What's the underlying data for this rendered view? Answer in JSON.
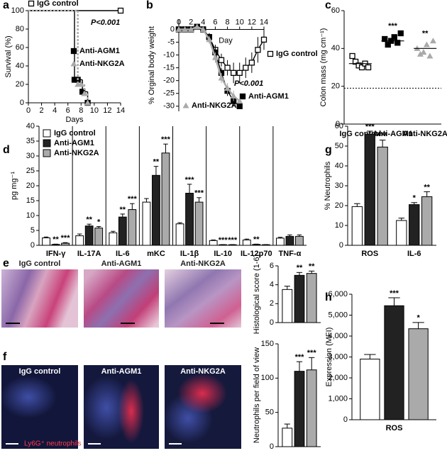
{
  "chart_data": [
    {
      "panel": "a",
      "type": "line",
      "step": true,
      "xlabel": "Days",
      "ylabel": "Survival (%)",
      "xlim": [
        0,
        14
      ],
      "xticks": [
        0,
        2,
        4,
        6,
        8,
        10,
        12,
        14
      ],
      "ylim": [
        0,
        100
      ],
      "yticks": [
        0,
        20,
        40,
        60,
        80,
        100
      ],
      "annotation": "P<0.001",
      "series": [
        {
          "name": "IgG control",
          "color": "#000000",
          "marker": "square-open",
          "x": [
            0,
            14
          ],
          "values": [
            100,
            100
          ]
        },
        {
          "name": "Anti-AGM1",
          "color": "#000000",
          "marker": "square",
          "x": [
            0,
            7,
            7.5,
            8.2,
            9
          ],
          "values": [
            100,
            25,
            25,
            12,
            0
          ]
        },
        {
          "name": "Anti-NKG2A",
          "color": "#aaaaaa",
          "marker": "triangle",
          "dash": true,
          "x": [
            0,
            7.5,
            8,
            8.5,
            9
          ],
          "values": [
            100,
            20,
            20,
            10,
            0
          ]
        }
      ]
    },
    {
      "panel": "b",
      "type": "line",
      "xlabel": "Day",
      "ylabel": "% Orginal body weight",
      "xaxis_crosses": 0,
      "xlim": [
        0,
        14
      ],
      "xticks": [
        0,
        2,
        4,
        6,
        8,
        10,
        12,
        14
      ],
      "ylim": [
        -32,
        4
      ],
      "yticks": [
        0,
        -5,
        -10,
        -15,
        -20,
        -25,
        -30
      ],
      "annotation": "P<0.001",
      "series": [
        {
          "name": "IgG control",
          "color": "#000000",
          "marker": "square-open",
          "x": [
            0,
            1,
            2,
            3,
            4,
            5,
            6,
            7,
            8,
            9,
            10,
            11,
            12,
            13,
            14
          ],
          "values": [
            0,
            0,
            0,
            1,
            0,
            -3,
            -8,
            -12,
            -15,
            -17,
            -17,
            -15,
            -13,
            -8,
            -4
          ],
          "errors": [
            1,
            1,
            1,
            1,
            1,
            1.5,
            2,
            2.5,
            3,
            4,
            4,
            4,
            4,
            5,
            4
          ]
        },
        {
          "name": "Anti-AGM1",
          "color": "#000000",
          "marker": "square",
          "x": [
            0,
            1,
            2,
            3,
            4,
            5,
            6,
            7,
            8,
            9,
            10
          ],
          "values": [
            0,
            0,
            0,
            1,
            0,
            -3,
            -9,
            -17,
            -24,
            -28,
            -30
          ],
          "errors": [
            1,
            1,
            1,
            1,
            1,
            1.5,
            2,
            2,
            2,
            2,
            1
          ]
        },
        {
          "name": "Anti-NKG2A",
          "color": "#aaaaaa",
          "marker": "triangle",
          "x": [
            0,
            1,
            2,
            3,
            4,
            5,
            6,
            7,
            8,
            9,
            10
          ],
          "values": [
            0,
            0,
            0,
            1,
            0,
            -4,
            -11,
            -19,
            -23,
            -26,
            -28
          ],
          "errors": [
            1,
            1,
            1,
            1,
            1,
            1.5,
            2,
            2,
            2,
            2,
            1
          ]
        }
      ]
    },
    {
      "panel": "c",
      "type": "strip",
      "ylabel": "Colon mass (mg cm⁻¹)",
      "categories": [
        "IgG control",
        "Anti-AGM1",
        "Anti-NKG2A"
      ],
      "values": [
        [
          36,
          33,
          31,
          30,
          32,
          30
        ],
        [
          45,
          42,
          44,
          46,
          43,
          48
        ],
        [
          40,
          37,
          38,
          42,
          36,
          44
        ]
      ],
      "means": [
        32,
        44,
        40
      ],
      "markers": [
        "square-open",
        "square",
        "triangle"
      ],
      "colors": [
        "#000000",
        "#000000",
        "#aaaaaa"
      ],
      "significance": [
        null,
        "***",
        "**"
      ],
      "reference_line": 19,
      "ylim": [
        0,
        60
      ],
      "yticks": [
        0,
        20,
        40,
        60
      ]
    },
    {
      "panel": "d",
      "type": "bar",
      "ylabel": "pg mg⁻¹",
      "separators": true,
      "categories": [
        "IFN-γ",
        "IL-17A",
        "IL-6",
        "mKC",
        "IL-1β",
        "IL-10",
        "IL-12p70",
        "TNF-α"
      ],
      "ylim": [
        0,
        40
      ],
      "yticks": [
        0,
        5,
        10,
        15,
        20,
        25,
        30,
        35,
        40
      ],
      "series": [
        {
          "name": "IgG control",
          "color": "#ffffff",
          "values": [
            2.5,
            3.2,
            4.2,
            14.5,
            7.2,
            1.6,
            1.8,
            2.4
          ],
          "errors": [
            0.3,
            0.6,
            0.5,
            1.2,
            0.4,
            0.2,
            0.3,
            0.3
          ]
        },
        {
          "name": "Anti-AGM1",
          "color": "#222222",
          "values": [
            0.3,
            6.5,
            9.5,
            23.5,
            17.5,
            0.2,
            0.3,
            3
          ],
          "errors": [
            0.1,
            0.6,
            1,
            3,
            3,
            0.05,
            0.1,
            0.5
          ],
          "significance": [
            "**",
            "**",
            "**",
            "**",
            "***",
            "***",
            "**",
            null
          ]
        },
        {
          "name": "Anti-NKG2A",
          "color": "#aaaaaa",
          "values": [
            0.7,
            5.8,
            12,
            31,
            14.5,
            0.2,
            0.2,
            3
          ],
          "errors": [
            0.2,
            0.5,
            2,
            3,
            1.5,
            0.05,
            0.05,
            0.5
          ],
          "significance": [
            "***",
            "*",
            "***",
            "***",
            "***",
            "***",
            null,
            null
          ]
        }
      ]
    },
    {
      "panel": "g",
      "type": "bar",
      "ylabel": "% Neutrophils",
      "categories": [
        "ROS",
        "IL-6"
      ],
      "ylim": [
        0,
        60
      ],
      "yticks": [
        0,
        10,
        20,
        30,
        40,
        50,
        60
      ],
      "series": [
        {
          "color": "#ffffff",
          "values": [
            19.5,
            12.5
          ],
          "errors": [
            1.5,
            1.2
          ]
        },
        {
          "color": "#222222",
          "values": [
            56,
            20.5
          ],
          "errors": [
            1.5,
            1
          ],
          "significance": [
            "***",
            "*"
          ]
        },
        {
          "color": "#aaaaaa",
          "values": [
            49.5,
            24.5
          ],
          "errors": [
            3.5,
            2.5
          ],
          "significance": [
            "***",
            "**"
          ]
        }
      ]
    },
    {
      "type": "bar",
      "ylabel": "Histological score (1-6)",
      "categories": [
        null
      ],
      "ylim": [
        0,
        6
      ],
      "yticks": [
        0,
        2,
        4,
        6
      ],
      "series": [
        {
          "color": "#ffffff",
          "values": [
            3.5
          ],
          "errors": [
            0.35
          ]
        },
        {
          "color": "#222222",
          "values": [
            5.0
          ],
          "errors": [
            0.3
          ],
          "significance": [
            "**"
          ]
        },
        {
          "color": "#aaaaaa",
          "values": [
            5.2
          ],
          "errors": [
            0.25
          ],
          "significance": [
            "**"
          ]
        }
      ]
    },
    {
      "type": "bar",
      "ylabel": "Neutrophils per field of view",
      "categories": [
        null
      ],
      "ylim": [
        0,
        150
      ],
      "yticks": [
        0,
        50,
        100,
        150
      ],
      "series": [
        {
          "color": "#ffffff",
          "values": [
            27
          ],
          "errors": [
            6
          ]
        },
        {
          "color": "#222222",
          "values": [
            110
          ],
          "errors": [
            14
          ],
          "significance": [
            "***"
          ]
        },
        {
          "color": "#aaaaaa",
          "values": [
            112
          ],
          "errors": [
            18
          ],
          "significance": [
            "***"
          ]
        }
      ]
    },
    {
      "panel": "h",
      "type": "bar",
      "ylabel": "Expression (MFI)",
      "categories": [
        "ROS"
      ],
      "ylim": [
        0,
        6000
      ],
      "yticks": [
        0,
        {
          "value": 1000,
          "label": "1,000"
        },
        {
          "value": 2000,
          "label": "2,000"
        },
        {
          "value": 3000,
          "label": "3,000"
        },
        {
          "value": 4000,
          "label": "4,000"
        },
        {
          "value": 5000,
          "label": "5,000"
        },
        {
          "value": 6000,
          "label": "6,000"
        }
      ],
      "series": [
        {
          "color": "#ffffff",
          "values": [
            2900
          ],
          "errors": [
            220
          ]
        },
        {
          "color": "#222222",
          "values": [
            5450
          ],
          "errors": [
            380
          ],
          "significance": [
            "***"
          ]
        },
        {
          "color": "#aaaaaa",
          "values": [
            4350
          ],
          "errors": [
            300
          ],
          "significance": [
            "*"
          ]
        }
      ]
    }
  ],
  "images": [
    {
      "panel": "e",
      "labels": [
        "IgG control",
        "Anti-AGM1",
        "Anti-NKG2A"
      ]
    },
    {
      "panel": "f",
      "labels": [
        "IgG control",
        "Anti-AGM1",
        "Anti-NKG2A"
      ],
      "stain_label": "Ly6G⁺ neutrophils"
    }
  ]
}
